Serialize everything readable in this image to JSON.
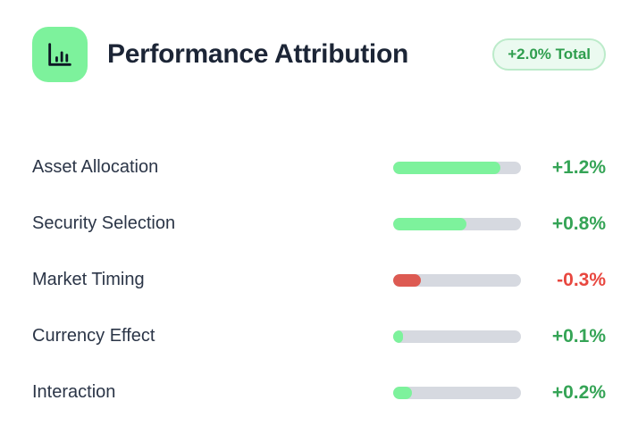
{
  "header": {
    "title": "Performance Attribution",
    "badge_label": "+2.0% Total",
    "icon": "bar-chart-icon"
  },
  "colors": {
    "icon_bg": "#7df29c",
    "icon_glyph": "#0d1624",
    "badge_bg": "#ebfaf0",
    "badge_border": "#bcebca",
    "badge_text": "#2f9e4e",
    "title_text": "#1c2536",
    "label_text": "#2b3547",
    "track": "#d6d9e0",
    "positive_bar": "#7df29c",
    "negative_bar": "#dd5a52",
    "positive_text": "#35a456",
    "negative_text": "#e8473f"
  },
  "rows": [
    {
      "label": "Asset Allocation",
      "value": "+1.2%",
      "fill_pct": 84,
      "direction": "positive"
    },
    {
      "label": "Security Selection",
      "value": "+0.8%",
      "fill_pct": 57,
      "direction": "positive"
    },
    {
      "label": "Market Timing",
      "value": "-0.3%",
      "fill_pct": 22,
      "direction": "negative"
    },
    {
      "label": "Currency Effect",
      "value": "+0.1%",
      "fill_pct": 8,
      "direction": "positive"
    },
    {
      "label": "Interaction",
      "value": "+0.2%",
      "fill_pct": 15,
      "direction": "positive"
    }
  ],
  "chart_data": {
    "type": "bar",
    "orientation": "horizontal",
    "title": "Performance Attribution",
    "total_label": "+2.0% Total",
    "categories": [
      "Asset Allocation",
      "Security Selection",
      "Market Timing",
      "Currency Effect",
      "Interaction"
    ],
    "values": [
      1.2,
      0.8,
      -0.3,
      0.1,
      0.2
    ],
    "unit": "%",
    "xlim": [
      0,
      1.4
    ],
    "grid": false,
    "legend": false,
    "note": "bar length encodes magnitude; green = positive, red = negative"
  }
}
